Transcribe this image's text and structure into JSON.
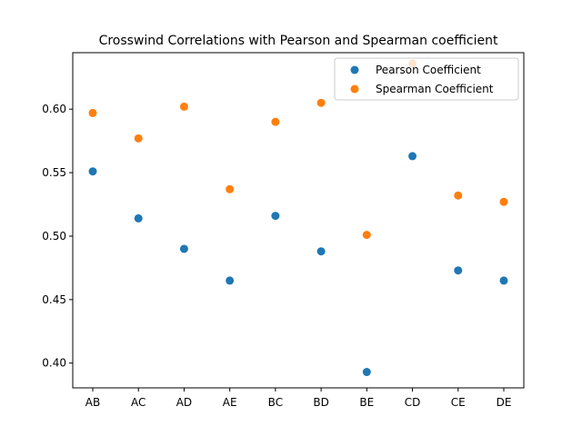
{
  "chart_data": {
    "type": "scatter",
    "title": "Crosswind Correlations with Pearson and Spearman coefficient",
    "xlabel": "",
    "ylabel": "",
    "categories": [
      "AB",
      "AC",
      "AD",
      "AE",
      "BC",
      "BD",
      "BE",
      "CD",
      "CE",
      "DE"
    ],
    "series": [
      {
        "name": "Pearson Coefficient",
        "color": "#1f77b4",
        "values": [
          0.551,
          0.514,
          0.49,
          0.465,
          0.516,
          0.488,
          0.393,
          0.563,
          0.473,
          0.465
        ]
      },
      {
        "name": "Spearman Coefficient",
        "color": "#ff7f0e",
        "values": [
          0.597,
          0.577,
          0.602,
          0.537,
          0.59,
          0.605,
          0.501,
          0.636,
          0.532,
          0.527
        ]
      }
    ],
    "ylim": [
      0.3805,
      0.6445
    ],
    "yticks": [
      0.4,
      0.45,
      0.5,
      0.55,
      0.6
    ],
    "ytick_labels": [
      "0.40",
      "0.45",
      "0.50",
      "0.55",
      "0.60"
    ],
    "legend_position": "top-right",
    "grid": false
  }
}
